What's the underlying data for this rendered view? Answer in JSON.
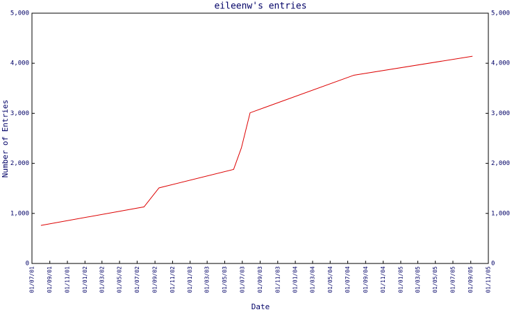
{
  "chart_data": {
    "type": "line",
    "title": "eileenw's entries",
    "x_label": "Date",
    "y_label": "Number of Entries",
    "x": [
      "01/08/01",
      "25/07/02",
      "15/09/02",
      "01/06/03",
      "28/06/03",
      "28/07/03",
      "22/07/04",
      "07/09/05"
    ],
    "series": [
      {
        "name": "entries",
        "color": "#dd0000",
        "values": [
          760,
          1130,
          1510,
          1880,
          2310,
          3010,
          3760,
          4140
        ]
      }
    ],
    "xlim": [
      "01/07/01",
      "01/11/05"
    ],
    "xticks": [
      "01/07/01",
      "01/09/01",
      "01/11/01",
      "01/01/02",
      "01/03/02",
      "01/05/02",
      "01/07/02",
      "01/09/02",
      "01/11/02",
      "01/01/03",
      "01/03/03",
      "01/05/03",
      "01/07/03",
      "01/09/03",
      "01/11/03",
      "01/01/04",
      "01/03/04",
      "01/05/04",
      "01/07/04",
      "01/09/04",
      "01/11/04",
      "01/01/05",
      "01/03/05",
      "01/05/05",
      "01/07/05",
      "01/09/05",
      "01/11/05"
    ],
    "ylim": [
      0,
      5000
    ],
    "yticks": [
      0,
      {
        "value": 1000,
        "label": "1,000"
      },
      {
        "value": 2000,
        "label": "2,000"
      },
      {
        "value": 3000,
        "label": "3,000"
      },
      {
        "value": 4000,
        "label": "4,000"
      },
      {
        "value": 5000,
        "label": "5,000"
      }
    ]
  }
}
